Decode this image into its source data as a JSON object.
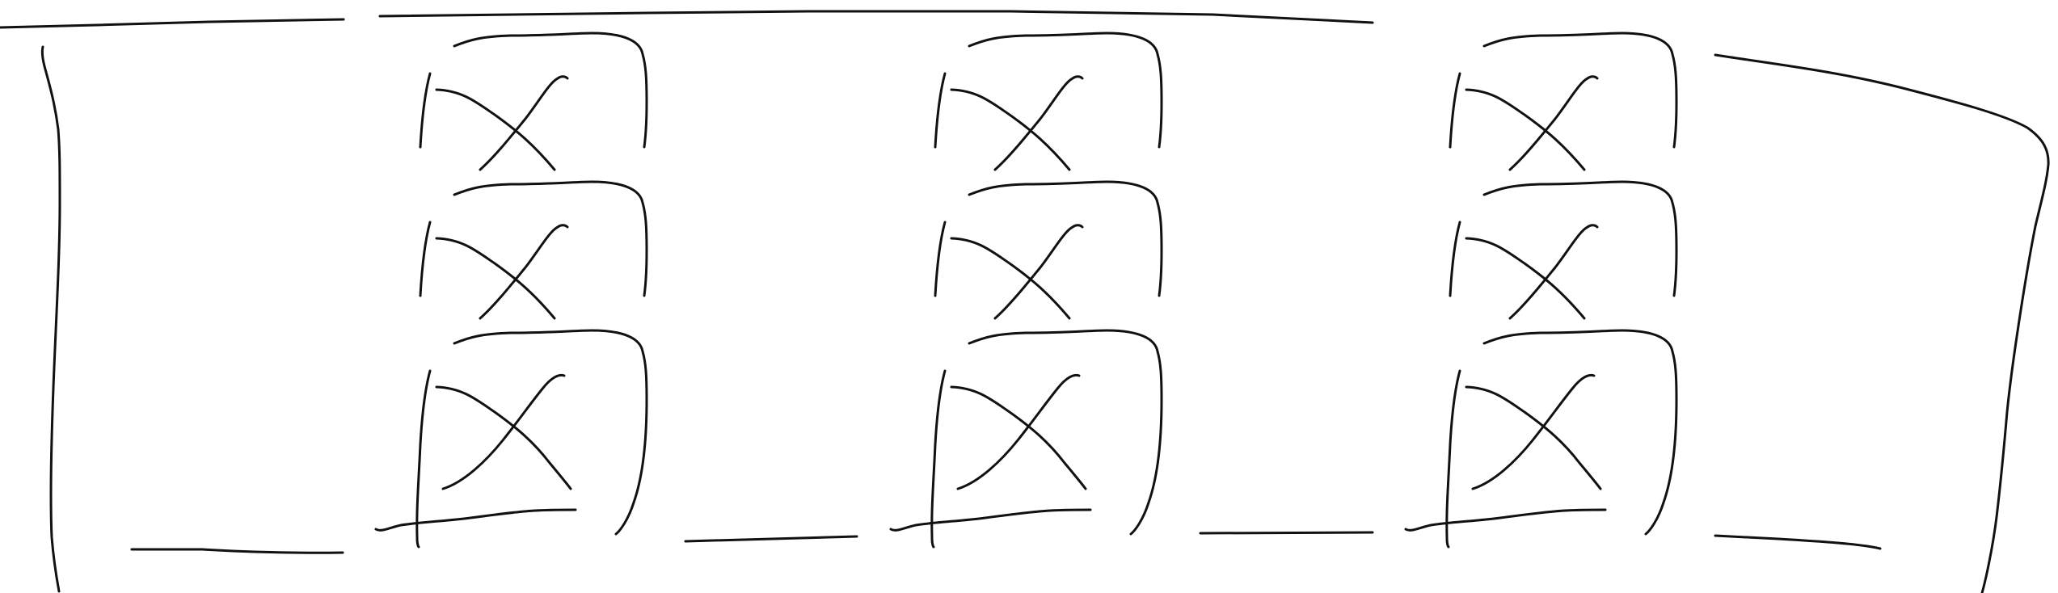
{
  "canvas": {
    "background": "#ffffff",
    "stroke_color": "#111111"
  },
  "diagram": {
    "kind": "hand-drawn sketch",
    "description_text": "",
    "columns": [
      {
        "cells": [
          {
            "symbol": "crossed-box-icon"
          },
          {
            "symbol": "crossed-box-icon"
          },
          {
            "symbol": "crossed-box-icon-with-base"
          }
        ]
      },
      {
        "cells": [
          {
            "symbol": "crossed-box-icon"
          },
          {
            "symbol": "crossed-box-icon"
          },
          {
            "symbol": "crossed-box-icon-with-base"
          }
        ]
      },
      {
        "cells": [
          {
            "symbol": "crossed-box-icon"
          },
          {
            "symbol": "crossed-box-icon"
          },
          {
            "symbol": "crossed-box-icon-with-base"
          }
        ]
      }
    ],
    "frame": {
      "left_bracket": true,
      "right_bracket": true,
      "top_lines": 2,
      "bottom_connectors": 4
    }
  }
}
